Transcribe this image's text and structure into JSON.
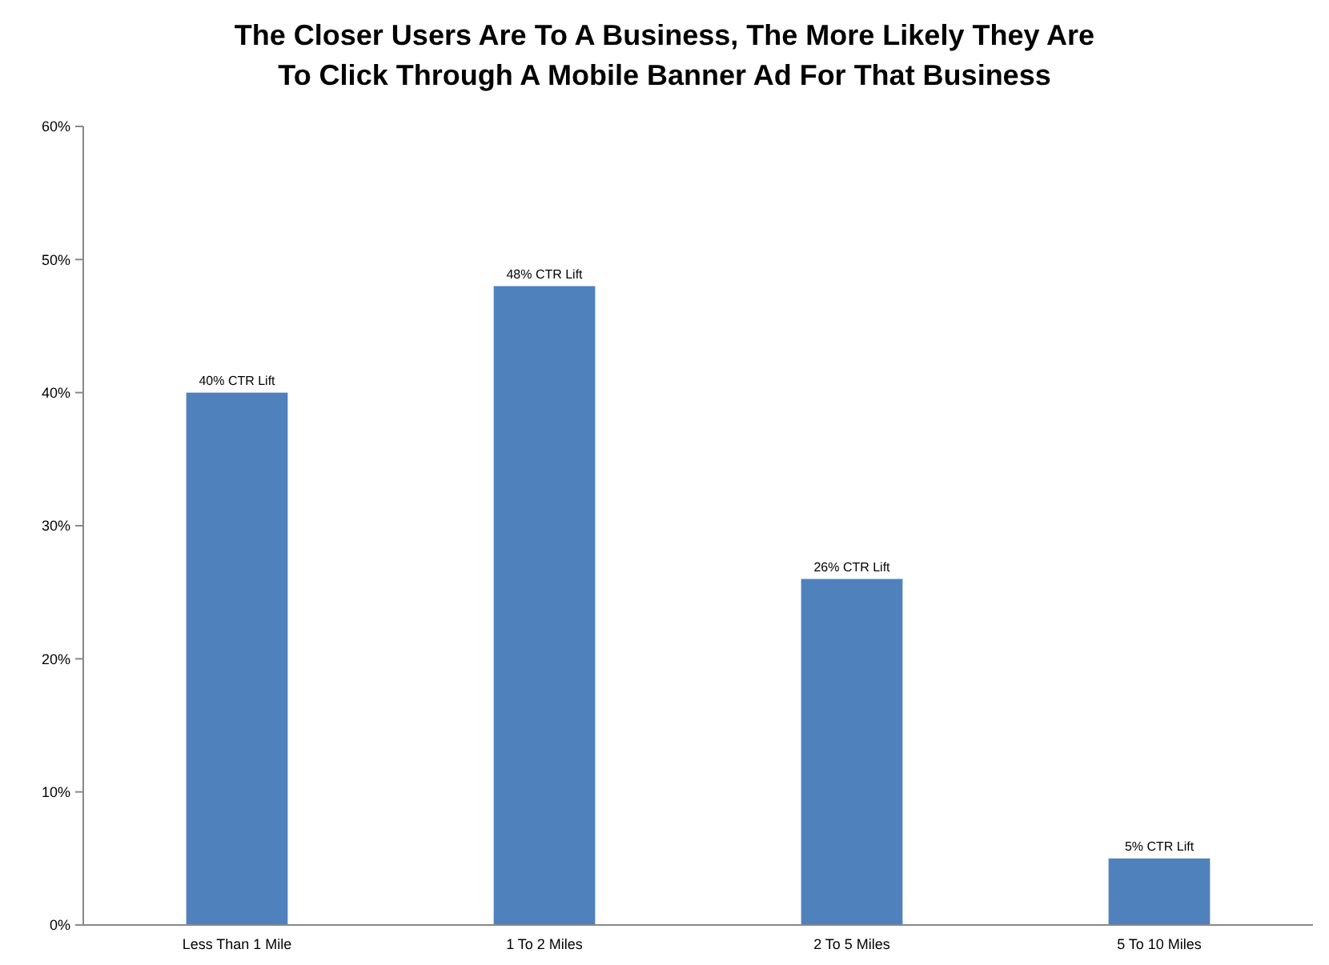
{
  "chart_data": {
    "type": "bar",
    "title": "The Closer Users Are To A Business, The More Likely They Are To Click Through A Mobile Banner Ad For That Business",
    "categories": [
      "Less Than 1 Mile",
      "1 To 2 Miles",
      "2 To 5 Miles",
      "5 To 10 Miles"
    ],
    "values": [
      40,
      48,
      26,
      5
    ],
    "value_labels": [
      "40% CTR Lift",
      "48% CTR Lift",
      "26% CTR Lift",
      "5% CTR Lift"
    ],
    "color": "#4f81bd",
    "ylim": [
      0,
      60
    ],
    "yticks": [
      {
        "value": 0,
        "label": "0%"
      },
      {
        "value": 10,
        "label": "10%"
      },
      {
        "value": 20,
        "label": "20%"
      },
      {
        "value": 30,
        "label": "30%"
      },
      {
        "value": 40,
        "label": "40%"
      },
      {
        "value": 50,
        "label": "50%"
      },
      {
        "value": 60,
        "label": "60%"
      }
    ],
    "grid": false
  }
}
